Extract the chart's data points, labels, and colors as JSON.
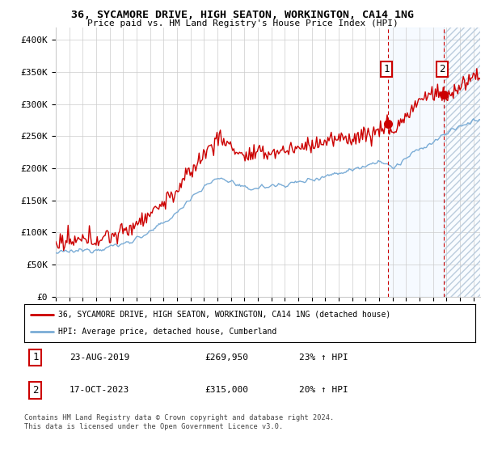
{
  "title": "36, SYCAMORE DRIVE, HIGH SEATON, WORKINGTON, CA14 1NG",
  "subtitle": "Price paid vs. HM Land Registry's House Price Index (HPI)",
  "legend_line1": "36, SYCAMORE DRIVE, HIGH SEATON, WORKINGTON, CA14 1NG (detached house)",
  "legend_line2": "HPI: Average price, detached house, Cumberland",
  "annotation1_date": "23-AUG-2019",
  "annotation1_price": "£269,950",
  "annotation1_hpi": "23% ↑ HPI",
  "annotation2_date": "17-OCT-2023",
  "annotation2_price": "£315,000",
  "annotation2_hpi": "20% ↑ HPI",
  "footer": "Contains HM Land Registry data © Crown copyright and database right 2024.\nThis data is licensed under the Open Government Licence v3.0.",
  "red_color": "#cc0000",
  "blue_color": "#7aacd6",
  "shade_color": "#ddeeff",
  "grid_color": "#cccccc",
  "bg_color": "#ffffff",
  "ylim": [
    0,
    420000
  ],
  "yticks": [
    0,
    50000,
    100000,
    150000,
    200000,
    250000,
    300000,
    350000,
    400000
  ],
  "ytick_labels": [
    "£0",
    "£50K",
    "£100K",
    "£150K",
    "£200K",
    "£250K",
    "£300K",
    "£350K",
    "£400K"
  ],
  "point1_x": 2019.65,
  "point1_y": 269950,
  "point2_x": 2023.8,
  "point2_y": 315000,
  "vline1_x": 2019.65,
  "vline2_x": 2023.8,
  "xmin": 1995,
  "xmax": 2026.5
}
